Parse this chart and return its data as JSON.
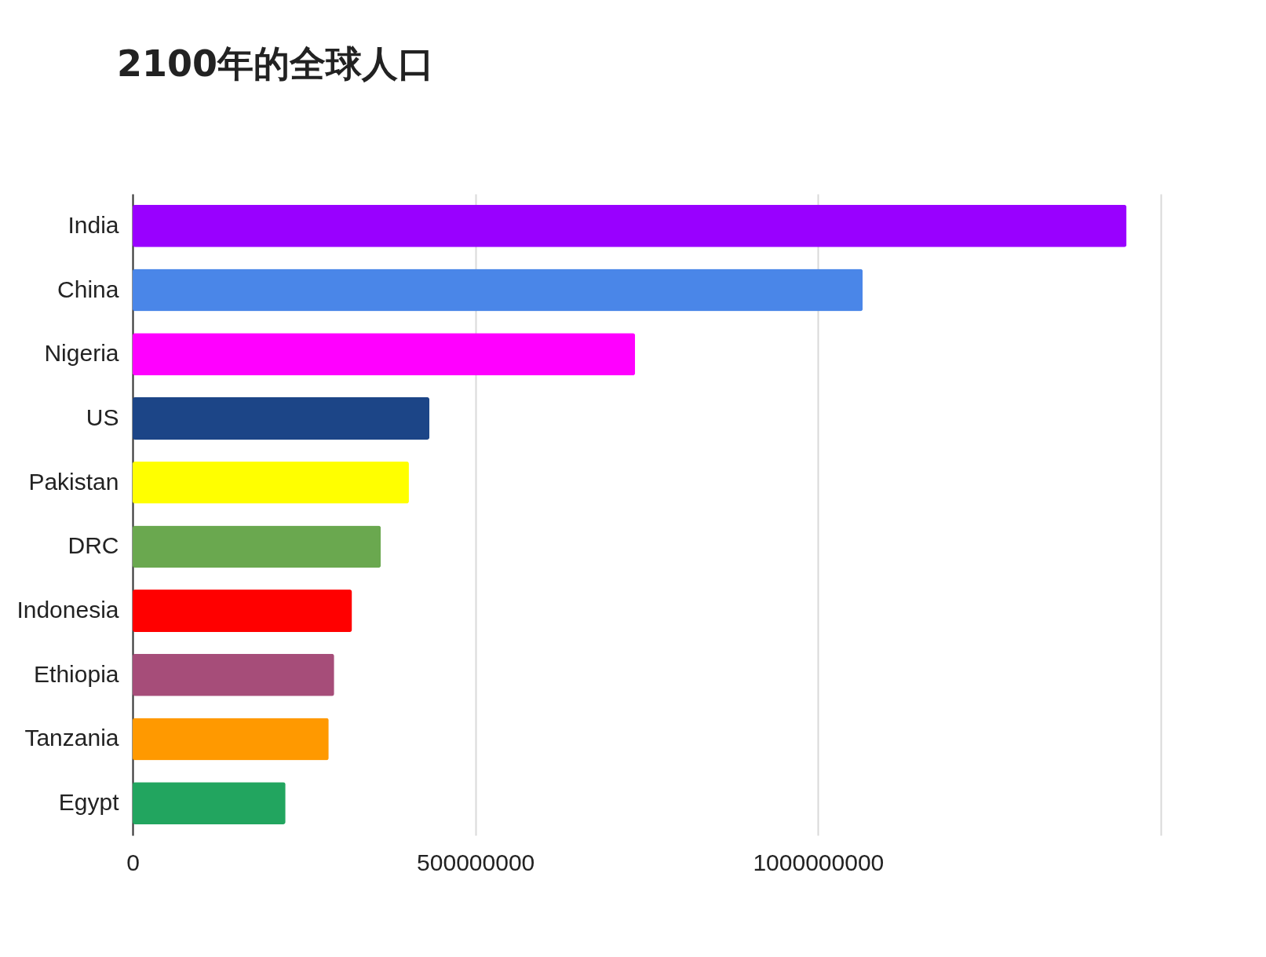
{
  "chart_data": {
    "type": "bar",
    "orientation": "horizontal",
    "title": "2100年的全球人口",
    "categories": [
      "India",
      "China",
      "Nigeria",
      "US",
      "Pakistan",
      "DRC",
      "Indonesia",
      "Ethiopia",
      "Tanzania",
      "Egypt"
    ],
    "values": [
      1450000000,
      1065000000,
      733000000,
      433000000,
      403000000,
      362000000,
      320000000,
      294000000,
      286000000,
      223000000
    ],
    "colors": [
      "#9900ff",
      "#4a86e8",
      "#ff00ff",
      "#1c4587",
      "#ffff00",
      "#6aa84f",
      "#ff0000",
      "#a64d79",
      "#ff9900",
      "#22a55f"
    ],
    "xlim": [
      0,
      1500000000
    ],
    "xticks": [
      0,
      500000000,
      1000000000,
      {
        "value": 1500000000,
        "label": null
      }
    ],
    "grid": "x",
    "legend": false
  }
}
